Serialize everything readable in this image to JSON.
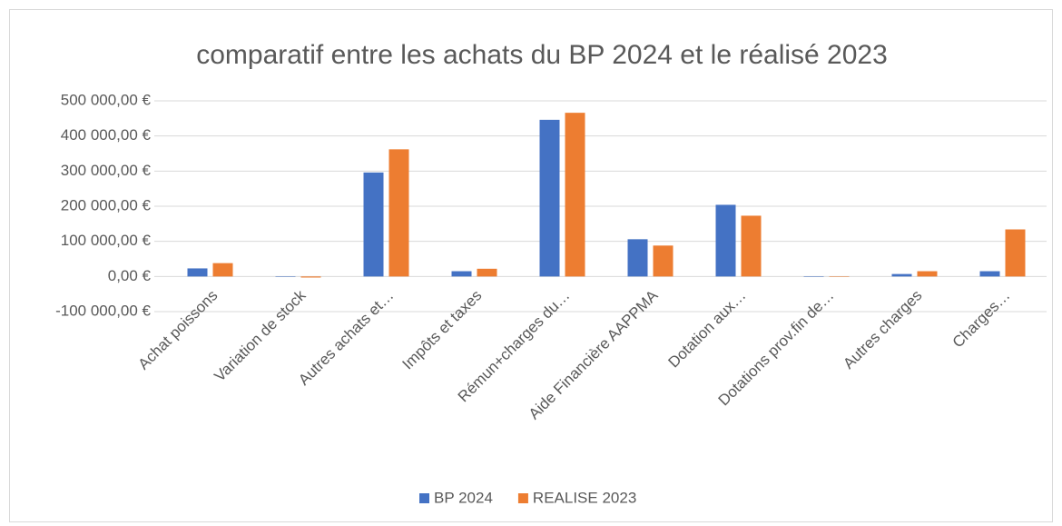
{
  "chart_data": {
    "type": "bar",
    "title": "comparatif entre les achats du BP 2024 et le réalisé 2023",
    "categories": [
      "Achat poissons",
      "Variation de stock",
      "Autres achats et…",
      "Impôts et taxes",
      "Rémun+charges du…",
      "Aide Financière AAPPMA",
      "Dotation aux…",
      "Dotations prov.fin de…",
      "Autres charges",
      "Charges…"
    ],
    "series": [
      {
        "name": "BP 2024",
        "color": "#4472c4",
        "values": [
          23000,
          0,
          296000,
          15000,
          446000,
          106000,
          204000,
          0,
          7000,
          15000
        ]
      },
      {
        "name": "REALISE 2023",
        "color": "#ed7d31",
        "values": [
          38000,
          -3000,
          362000,
          22000,
          466000,
          88000,
          173000,
          0,
          15000,
          134000
        ]
      }
    ],
    "ylim": [
      -100000,
      500000
    ],
    "yticks": [
      {
        "value": -100000,
        "label": "-100 000,00 €"
      },
      {
        "value": 0,
        "label": "0,00 €"
      },
      {
        "value": 100000,
        "label": "100 000,00 €"
      },
      {
        "value": 200000,
        "label": "200 000,00 €"
      },
      {
        "value": 300000,
        "label": "300 000,00 €"
      },
      {
        "value": 400000,
        "label": "400 000,00 €"
      },
      {
        "value": 500000,
        "label": "500 000,00 €"
      }
    ],
    "grid": true,
    "legend": "bottom"
  }
}
